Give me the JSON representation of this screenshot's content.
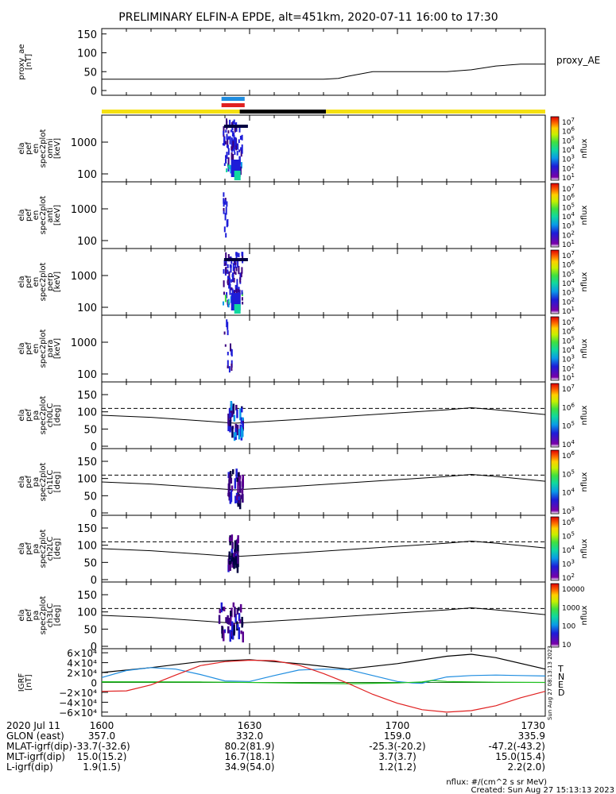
{
  "title": "PRELIMINARY ELFIN-A EPDE, alt=451km, 2020-07-11 16:00 to 17:30",
  "created": "Created: Sun Aug 27 15:13:13 2023",
  "units_note": "nflux: #/(cm^2 s sr MeV)",
  "side_stamp": "Sun Aug 27 08:13:13 2023",
  "colors": {
    "black": "#000000",
    "yellow": "#f5e010",
    "blue": "#1f8de0",
    "red": "#e02020",
    "green": "#20c020"
  },
  "chart_data": [
    {
      "type": "line",
      "panel": "proxy_ae",
      "ylabel": [
        "proxy_ae",
        "[nT]"
      ],
      "legend": "proxy_AE",
      "yticks": [
        "150",
        "100",
        "50",
        "0"
      ],
      "ylim": [
        0,
        160
      ],
      "xlim_min": [
        0,
        90
      ],
      "series": [
        {
          "name": "proxy_AE",
          "x": [
            0,
            5,
            10,
            20,
            30,
            40,
            45,
            48,
            50,
            55,
            60,
            65,
            70,
            75,
            80,
            85,
            90
          ],
          "y": [
            30,
            30,
            30,
            30,
            30,
            30,
            30,
            32,
            38,
            50,
            50,
            50,
            50,
            55,
            65,
            70,
            70
          ]
        }
      ]
    },
    {
      "type": "timeline",
      "panel": "status_bar",
      "segments": [
        {
          "x": [
            0,
            28
          ],
          "color": "yellow"
        },
        {
          "x": [
            28,
            45.5
          ],
          "color": "black"
        },
        {
          "x": [
            45.5,
            90
          ],
          "color": "yellow"
        }
      ],
      "markers": [
        {
          "x": [
            24.3,
            29
          ],
          "color": "blue"
        },
        {
          "x": [
            24.3,
            29
          ],
          "color": "red"
        }
      ]
    },
    {
      "type": "heatmap",
      "panel": "omni",
      "ylabel": [
        "ela",
        "pef",
        "en",
        "spec2plot",
        "omni",
        "[keV]"
      ],
      "yticks": [
        "1000",
        "100"
      ],
      "colorbar": {
        "label": "nflux",
        "ticks": [
          "10^7",
          "10^6",
          "10^5",
          "10^4",
          "10^3",
          "10^2",
          "10^1"
        ]
      },
      "activity_x": [
        24.5,
        28.5
      ]
    },
    {
      "type": "heatmap",
      "panel": "anti",
      "ylabel": [
        "ela",
        "pef",
        "en",
        "spec2plot",
        "anti",
        "[keV]"
      ],
      "yticks": [
        "1000",
        "100"
      ],
      "colorbar": {
        "label": "nflux",
        "ticks": [
          "10^7",
          "10^6",
          "10^5",
          "10^4",
          "10^3",
          "10^2",
          "10^1"
        ]
      },
      "activity_x": [
        24.5,
        25.5
      ]
    },
    {
      "type": "heatmap",
      "panel": "perp",
      "ylabel": [
        "ela",
        "pef",
        "en",
        "spec2plot",
        "perp",
        "[keV]"
      ],
      "yticks": [
        "1000",
        "100"
      ],
      "colorbar": {
        "label": "nflux",
        "ticks": [
          "10^7",
          "10^6",
          "10^5",
          "10^4",
          "10^3",
          "10^2",
          "10^1"
        ]
      },
      "activity_x": [
        24.5,
        28.5
      ]
    },
    {
      "type": "heatmap",
      "panel": "para",
      "ylabel": [
        "ela",
        "pef",
        "en",
        "spec2plot",
        "para",
        "[keV]"
      ],
      "yticks": [
        "1000",
        "100"
      ],
      "colorbar": {
        "label": "nflux",
        "ticks": [
          "10^7",
          "10^6",
          "10^5",
          "10^4",
          "10^3",
          "10^2",
          "10^1"
        ]
      },
      "activity_x": [
        24.5,
        26.5
      ]
    },
    {
      "type": "heatmap",
      "panel": "ch0LC",
      "ylabel": [
        "ela",
        "pef",
        "pa",
        "spec2plot",
        "ch0LC",
        "[deg]"
      ],
      "yticks": [
        "150",
        "100",
        "50",
        "0"
      ],
      "colorbar": {
        "label": "nflux",
        "ticks": [
          "10^7",
          "10^6",
          "10^5",
          "10^4"
        ]
      },
      "ylim": [
        0,
        180
      ],
      "dashed_y": 110,
      "line": {
        "x": [
          0,
          10,
          20,
          27,
          40,
          55,
          70,
          75,
          80,
          90
        ],
        "y": [
          90,
          84,
          74,
          67,
          78,
          92,
          106,
          112,
          106,
          92
        ]
      },
      "activity_x": [
        25.5,
        28.5
      ]
    },
    {
      "type": "heatmap",
      "panel": "ch1LC",
      "ylabel": [
        "ela",
        "pef",
        "pa",
        "spec2plot",
        "ch1LC",
        "[deg]"
      ],
      "yticks": [
        "150",
        "100",
        "50",
        "0"
      ],
      "colorbar": {
        "label": "nflux",
        "ticks": [
          "10^6",
          "10^5",
          "10^4",
          "10^3"
        ]
      },
      "ylim": [
        0,
        180
      ],
      "dashed_y": 110,
      "line": {
        "x": [
          0,
          10,
          20,
          27,
          40,
          55,
          70,
          75,
          80,
          90
        ],
        "y": [
          90,
          84,
          74,
          67,
          78,
          92,
          106,
          112,
          106,
          92
        ]
      },
      "activity_x": [
        25.5,
        28.5
      ]
    },
    {
      "type": "heatmap",
      "panel": "ch2LC",
      "ylabel": [
        "ela",
        "pef",
        "pa",
        "spec2plot",
        "ch2LC",
        "[deg]"
      ],
      "yticks": [
        "150",
        "100",
        "50",
        "0"
      ],
      "colorbar": {
        "label": "nflux",
        "ticks": [
          "10^6",
          "10^5",
          "10^4",
          "10^3",
          "10^2"
        ]
      },
      "ylim": [
        0,
        180
      ],
      "dashed_y": 110,
      "line": {
        "x": [
          0,
          10,
          20,
          27,
          40,
          55,
          70,
          75,
          80,
          90
        ],
        "y": [
          90,
          84,
          74,
          67,
          78,
          92,
          106,
          112,
          106,
          92
        ]
      },
      "activity_x": [
        25.5,
        27.5
      ]
    },
    {
      "type": "heatmap",
      "panel": "ch3LC",
      "ylabel": [
        "ela",
        "pef",
        "pa",
        "spec2plot",
        "ch3LC",
        "[deg]"
      ],
      "yticks": [
        "150",
        "100",
        "50",
        "0"
      ],
      "colorbar": {
        "label": "nflux",
        "ticks": [
          "10000",
          "1000",
          "100",
          "10"
        ]
      },
      "ylim": [
        0,
        180
      ],
      "dashed_y": 110,
      "line": {
        "x": [
          0,
          10,
          20,
          27,
          40,
          55,
          70,
          75,
          80,
          90
        ],
        "y": [
          90,
          84,
          74,
          67,
          78,
          92,
          106,
          112,
          106,
          92
        ]
      },
      "activity_x": [
        23.5,
        28.5
      ]
    },
    {
      "type": "line",
      "panel": "igrf",
      "ylabel": [
        "IGRF",
        "[nT]"
      ],
      "yticks": [
        "6×10⁴",
        "4×10⁴",
        "2×10⁴",
        "0",
        "−2×10⁴",
        "−4×10⁴",
        "−6×10⁴"
      ],
      "ylim": [
        -65000,
        65000
      ],
      "legend": [
        "T",
        "N",
        "E",
        "D"
      ],
      "series": [
        {
          "name": "T",
          "color": "black",
          "x": [
            0,
            10,
            20,
            30,
            40,
            50,
            60,
            70,
            75,
            80,
            90
          ],
          "y": [
            20000,
            30000,
            42000,
            46000,
            38000,
            27000,
            38000,
            53000,
            57000,
            50000,
            27000
          ]
        },
        {
          "name": "N",
          "color": "blue",
          "x": [
            0,
            5,
            10,
            15,
            20,
            25,
            30,
            35,
            40,
            45,
            50,
            55,
            60,
            63,
            65,
            67,
            70,
            75,
            80,
            85,
            90
          ],
          "y": [
            10000,
            24000,
            30000,
            27000,
            16000,
            3000,
            2000,
            14000,
            25000,
            27000,
            26000,
            14000,
            2000,
            -1000,
            -2000,
            4000,
            11000,
            14000,
            15000,
            14000,
            13000
          ]
        },
        {
          "name": "E",
          "color": "green",
          "x": [
            0,
            20,
            30,
            40,
            50,
            60,
            65,
            67,
            70,
            80,
            90
          ],
          "y": [
            1500,
            1000,
            0,
            -1500,
            -2500,
            -1000,
            1000,
            4000,
            2000,
            500,
            0
          ]
        },
        {
          "name": "D",
          "color": "red",
          "x": [
            0,
            5,
            10,
            15,
            20,
            25,
            30,
            35,
            40,
            45,
            50,
            55,
            60,
            65,
            70,
            75,
            80,
            85,
            90
          ],
          "y": [
            -18000,
            -17000,
            -5000,
            15000,
            34000,
            42000,
            45000,
            44000,
            35000,
            18000,
            -2000,
            -24000,
            -42000,
            -55000,
            -60000,
            -57000,
            -47000,
            -31000,
            -18000
          ]
        }
      ]
    }
  ],
  "axis": {
    "x_ticks": [
      {
        "x": 0,
        "label": "1600"
      },
      {
        "x": 30,
        "label": "1630"
      },
      {
        "x": 60,
        "label": "1700"
      },
      {
        "x": 90,
        "label": "1730"
      }
    ],
    "rows": [
      {
        "label": "2020 Jul 11",
        "values": [
          "1600",
          "1630",
          "1700",
          "1730"
        ]
      },
      {
        "label": "GLON (east)",
        "values": [
          "357.0",
          "332.0",
          "159.0",
          "335.9"
        ]
      },
      {
        "label": "MLAT-igrf(dip)",
        "values": [
          "-33.7(-32.6)",
          "80.2(81.9)",
          "-25.3(-20.2)",
          "-47.2(-43.2)"
        ]
      },
      {
        "label": "MLT-igrf(dip)",
        "values": [
          "15.0(15.2)",
          "16.7(18.1)",
          "3.7(3.7)",
          "15.0(15.4)"
        ]
      },
      {
        "label": "L-igrf(dip)",
        "values": [
          "1.9(1.5)",
          "34.9(54.0)",
          "1.2(1.2)",
          "2.2(2.0)"
        ]
      }
    ]
  }
}
